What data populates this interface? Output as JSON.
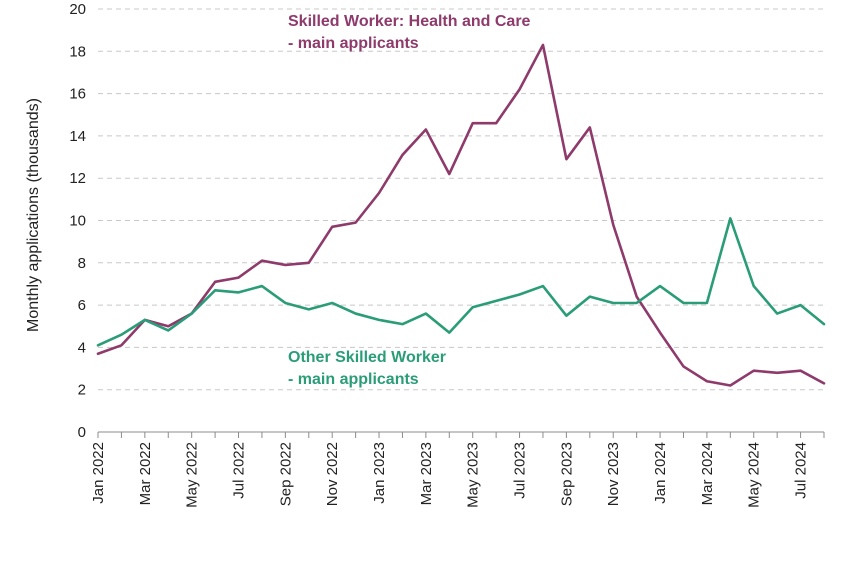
{
  "chart_data": {
    "type": "line",
    "title": "",
    "xlabel": "",
    "ylabel": "Monthly applications (thousands)",
    "ylim": [
      0,
      20
    ],
    "yticks": [
      "0",
      "2",
      "4",
      "6",
      "8",
      "10",
      "12",
      "14",
      "16",
      "18",
      "20"
    ],
    "x": [
      "Jan 2022",
      "Feb 2022",
      "Mar 2022",
      "Apr 2022",
      "May 2022",
      "Jun 2022",
      "Jul 2022",
      "Aug 2022",
      "Sep 2022",
      "Oct 2022",
      "Nov 2022",
      "Dec 2022",
      "Jan 2023",
      "Feb 2023",
      "Mar 2023",
      "Apr 2023",
      "May 2023",
      "Jun 2023",
      "Jul 2023",
      "Aug 2023",
      "Sep 2023",
      "Oct 2023",
      "Nov 2023",
      "Dec 2023",
      "Jan 2024",
      "Feb 2024",
      "Mar 2024",
      "Apr 2024",
      "May 2024",
      "Jun 2024",
      "Jul 2024",
      "Aug 2024"
    ],
    "xtick_labels": [
      "Jan 2022",
      "Mar 2022",
      "May 2022",
      "Jul 2022",
      "Sep 2022",
      "Nov 2022",
      "Jan 2023",
      "Mar 2023",
      "May 2023",
      "Jul 2023",
      "Sep 2023",
      "Nov 2023",
      "Jan 2024",
      "Mar 2024",
      "May 2024",
      "Jul 2024"
    ],
    "grid": true,
    "series": [
      {
        "name": "Skilled Worker: Health and Care - main applicants",
        "label_line1": "Skilled Worker: Health and Care",
        "label_line2": "- main applicants",
        "color": "#8e3a6b",
        "values": [
          3.7,
          4.1,
          5.3,
          5.0,
          5.6,
          7.1,
          7.3,
          8.1,
          7.9,
          8.0,
          9.7,
          9.9,
          11.3,
          13.1,
          14.3,
          12.2,
          14.6,
          14.6,
          16.2,
          18.3,
          12.9,
          14.4,
          9.8,
          6.4,
          4.7,
          3.1,
          2.4,
          2.2,
          2.9,
          2.8,
          2.9,
          2.3
        ]
      },
      {
        "name": "Other Skilled Worker - main applicants",
        "label_line1": "Other Skilled Worker",
        "label_line2": "- main applicants",
        "color": "#2a9d78",
        "values": [
          4.1,
          4.6,
          5.3,
          4.8,
          5.6,
          6.7,
          6.6,
          6.9,
          6.1,
          5.8,
          6.1,
          5.6,
          5.3,
          5.1,
          5.6,
          4.7,
          5.9,
          6.2,
          6.5,
          6.9,
          5.5,
          6.4,
          6.1,
          6.1,
          6.9,
          6.1,
          6.1,
          10.1,
          6.9,
          5.6,
          6.0,
          5.1
        ]
      }
    ]
  }
}
